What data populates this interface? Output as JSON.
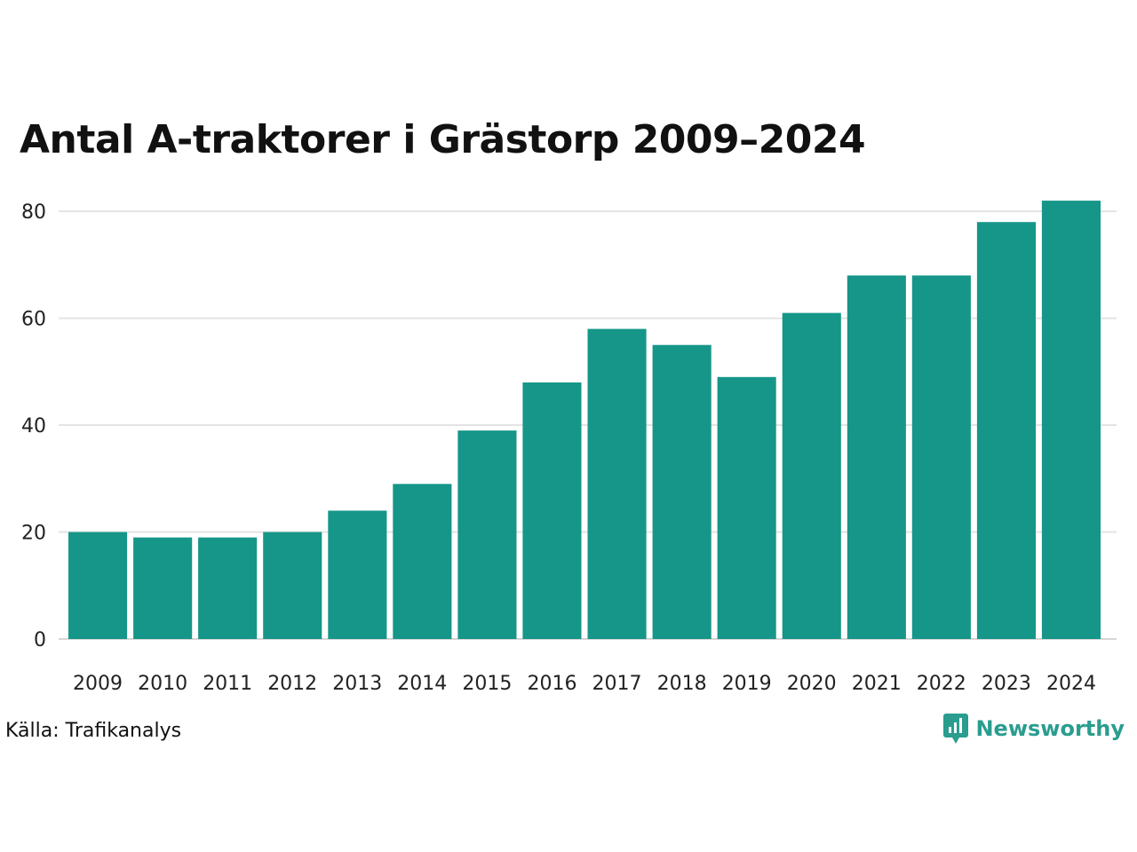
{
  "title": "Antal A-traktorer i Grästorp 2009–2024",
  "source": "Källa: Trafikanalys",
  "brand": {
    "name": "Newsworthy",
    "icon": "newsworthy-logo-icon",
    "color": "#2a9d8f"
  },
  "chart_data": {
    "type": "bar",
    "categories": [
      "2009",
      "2010",
      "2011",
      "2012",
      "2013",
      "2014",
      "2015",
      "2016",
      "2017",
      "2018",
      "2019",
      "2020",
      "2021",
      "2022",
      "2023",
      "2024"
    ],
    "values": [
      20,
      19,
      19,
      20,
      24,
      29,
      39,
      48,
      58,
      55,
      49,
      61,
      68,
      68,
      78,
      82
    ],
    "yticks": [
      0,
      20,
      40,
      60,
      80
    ],
    "ylim": [
      0,
      85
    ],
    "bar_color": "#159688",
    "grid": true
  }
}
